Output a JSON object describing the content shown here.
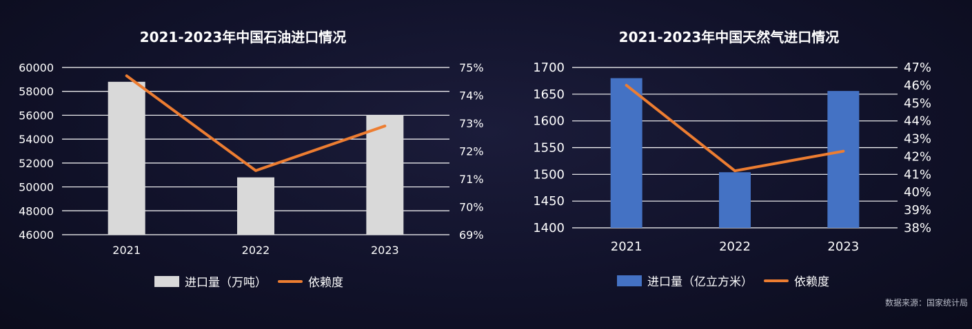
{
  "colors": {
    "oil_bar": "#d9d9d9",
    "gas_bar": "#4472c4",
    "line": "#ed7d31",
    "grid": "#ffffff"
  },
  "source_note": "数据来源：国家统计局",
  "chart_data": [
    {
      "type": "bar",
      "title": "2021-2023年中国石油进口情况",
      "categories": [
        "2021",
        "2022",
        "2023"
      ],
      "series": [
        {
          "name": "进口量（万吨）",
          "type": "bar",
          "axis": "left",
          "values": [
            58800,
            50800,
            56000
          ]
        },
        {
          "name": "依赖度",
          "type": "line",
          "axis": "right",
          "values": [
            74.7,
            71.3,
            72.9
          ]
        }
      ],
      "y_left": {
        "min": 46000,
        "max": 60000,
        "ticks": [
          "60000",
          "58000",
          "56000",
          "54000",
          "52000",
          "50000",
          "48000",
          "46000"
        ]
      },
      "y_right": {
        "min": 69,
        "max": 75,
        "ticks": [
          "75%",
          "74%",
          "73%",
          "72%",
          "71%",
          "70%",
          "69%"
        ]
      },
      "grid": true,
      "legend": "bottom"
    },
    {
      "type": "bar",
      "title": "2021-2023年中国天然气进口情况",
      "categories": [
        "2021",
        "2022",
        "2023"
      ],
      "series": [
        {
          "name": "进口量（亿立方米）",
          "type": "bar",
          "axis": "left",
          "values": [
            1680,
            1504,
            1656
          ]
        },
        {
          "name": "依赖度",
          "type": "line",
          "axis": "right",
          "values": [
            46.0,
            41.2,
            42.3
          ]
        }
      ],
      "y_left": {
        "min": 1400,
        "max": 1700,
        "ticks": [
          "1700",
          "1650",
          "1600",
          "1550",
          "1500",
          "1450",
          "1400"
        ]
      },
      "y_right": {
        "min": 38,
        "max": 47,
        "ticks": [
          "47%",
          "46%",
          "45%",
          "44%",
          "43%",
          "42%",
          "41%",
          "40%",
          "39%",
          "38%"
        ]
      },
      "grid": true,
      "legend": "bottom"
    }
  ]
}
